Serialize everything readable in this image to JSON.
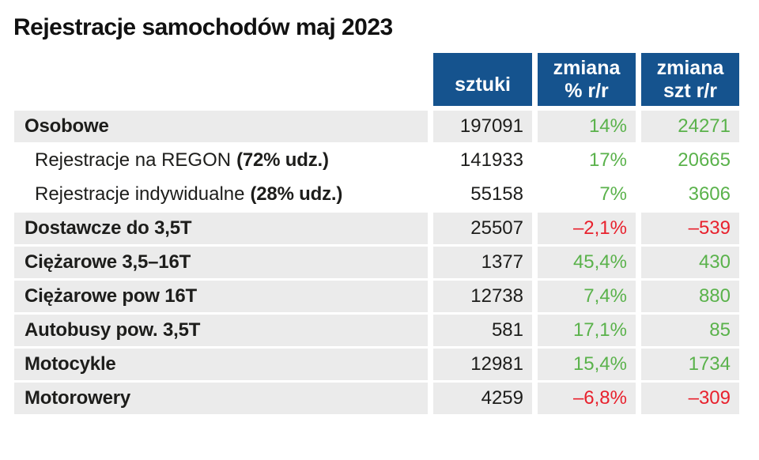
{
  "title": "Rejestracje samochodów maj 2023",
  "colors": {
    "header_bg": "#15538e",
    "header_text": "#ffffff",
    "row_bg": "#ebebeb",
    "positive": "#5ab24b",
    "negative": "#e8212d",
    "text": "#1d1d1b"
  },
  "chart_data": {
    "type": "table",
    "title": "Rejestracje samochodów maj 2023",
    "columns": [
      "sztuki",
      "zmiana\n% r/r",
      "zmiana\nszt r/r"
    ],
    "rows": [
      {
        "label": "Osobowe",
        "sztuki": "197091",
        "zmiana_pct": "14%",
        "zmiana_szt": "24271",
        "trend": "up",
        "indent": false
      },
      {
        "label": "Rejestracje na REGON",
        "label_suffix": "(72% udz.)",
        "sztuki": "141933",
        "zmiana_pct": "17%",
        "zmiana_szt": "20665",
        "trend": "up",
        "indent": true
      },
      {
        "label": "Rejestracje indywidualne",
        "label_suffix": "(28% udz.)",
        "sztuki": "55158",
        "zmiana_pct": "7%",
        "zmiana_szt": "3606",
        "trend": "up",
        "indent": true
      },
      {
        "label": "Dostawcze do 3,5T",
        "sztuki": "25507",
        "zmiana_pct": "–2,1%",
        "zmiana_szt": "–539",
        "trend": "down",
        "indent": false
      },
      {
        "label": "Ciężarowe 3,5–16T",
        "sztuki": "1377",
        "zmiana_pct": "45,4%",
        "zmiana_szt": "430",
        "trend": "up",
        "indent": false
      },
      {
        "label": "Ciężarowe pow 16T",
        "sztuki": "12738",
        "zmiana_pct": "7,4%",
        "zmiana_szt": "880",
        "trend": "up",
        "indent": false
      },
      {
        "label": "Autobusy pow. 3,5T",
        "sztuki": "581",
        "zmiana_pct": "17,1%",
        "zmiana_szt": "85",
        "trend": "up",
        "indent": false
      },
      {
        "label": "Motocykle",
        "sztuki": "12981",
        "zmiana_pct": "15,4%",
        "zmiana_szt": "1734",
        "trend": "up",
        "indent": false
      },
      {
        "label": "Motorowery",
        "sztuki": "4259",
        "zmiana_pct": "–6,8%",
        "zmiana_szt": "–309",
        "trend": "down",
        "indent": false
      }
    ]
  }
}
